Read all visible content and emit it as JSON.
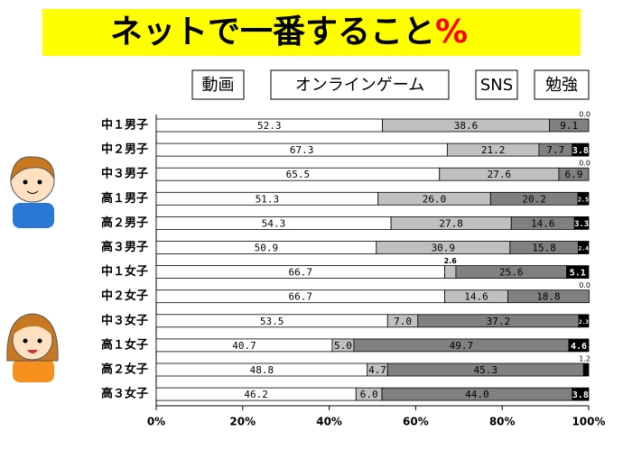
{
  "chart_data": {
    "type": "stacked_bar_horizontal",
    "title": "ネットで一番すること",
    "title_unit": "%",
    "categories": [
      "中１男子",
      "中２男子",
      "中３男子",
      "高１男子",
      "高２男子",
      "高３男子",
      "中１女子",
      "中２女子",
      "中３女子",
      "高１女子",
      "高２女子",
      "高３女子"
    ],
    "series": [
      {
        "name": "動画",
        "color": "#ffffff",
        "values": [
          52.3,
          67.3,
          65.5,
          51.3,
          54.3,
          50.9,
          66.7,
          66.7,
          53.5,
          40.7,
          48.8,
          46.2
        ],
        "value_labels": [
          "52.3",
          "67.3",
          "65.5",
          "51.3",
          "54.3",
          "50.9",
          "66.7",
          "66.7",
          "53.5",
          "40.7",
          "48.8",
          "46.2"
        ]
      },
      {
        "name": "オンラインゲーム",
        "color": "#c0c0c0",
        "values": [
          38.6,
          21.2,
          27.6,
          26.0,
          27.8,
          30.9,
          2.6,
          14.6,
          7.0,
          5.0,
          4.7,
          6.0
        ],
        "value_labels": [
          "38.6",
          "21.2",
          "27.6",
          "26.0",
          "27.8",
          "30.9",
          "2.6",
          "14.6",
          "7.0",
          "5.0",
          "4.7",
          "6.0"
        ]
      },
      {
        "name": "SNS",
        "color": "#808080",
        "values": [
          9.1,
          7.7,
          6.9,
          20.2,
          14.6,
          15.8,
          25.6,
          18.8,
          37.2,
          49.7,
          45.3,
          44.0
        ],
        "value_labels": [
          "9.1",
          "7.7",
          "6.9",
          "20.2",
          "14.6",
          "15.8",
          "25.6",
          "18.8",
          "37.2",
          "49.7",
          "45.3",
          "44.0"
        ]
      },
      {
        "name": "勉強",
        "color": "#000000",
        "values": [
          0.0,
          3.8,
          0.0,
          2.5,
          3.3,
          2.4,
          5.1,
          0.0,
          2.3,
          4.6,
          1.2,
          3.8
        ],
        "value_labels": [
          "0.0",
          "3.8",
          "0.0",
          "2.5",
          "3.3",
          "2.4",
          "5.1",
          "0.0",
          "2.3",
          "4.6",
          "1.2",
          "3.8"
        ]
      }
    ],
    "xlim": [
      0,
      100
    ],
    "xticks": [
      {
        "value": 0,
        "label": "0%"
      },
      {
        "value": 20,
        "label": "20%"
      },
      {
        "value": 40,
        "label": "40%"
      },
      {
        "value": 60,
        "label": "60%"
      },
      {
        "value": 80,
        "label": "80%"
      },
      {
        "value": 100,
        "label": "100%"
      }
    ]
  }
}
